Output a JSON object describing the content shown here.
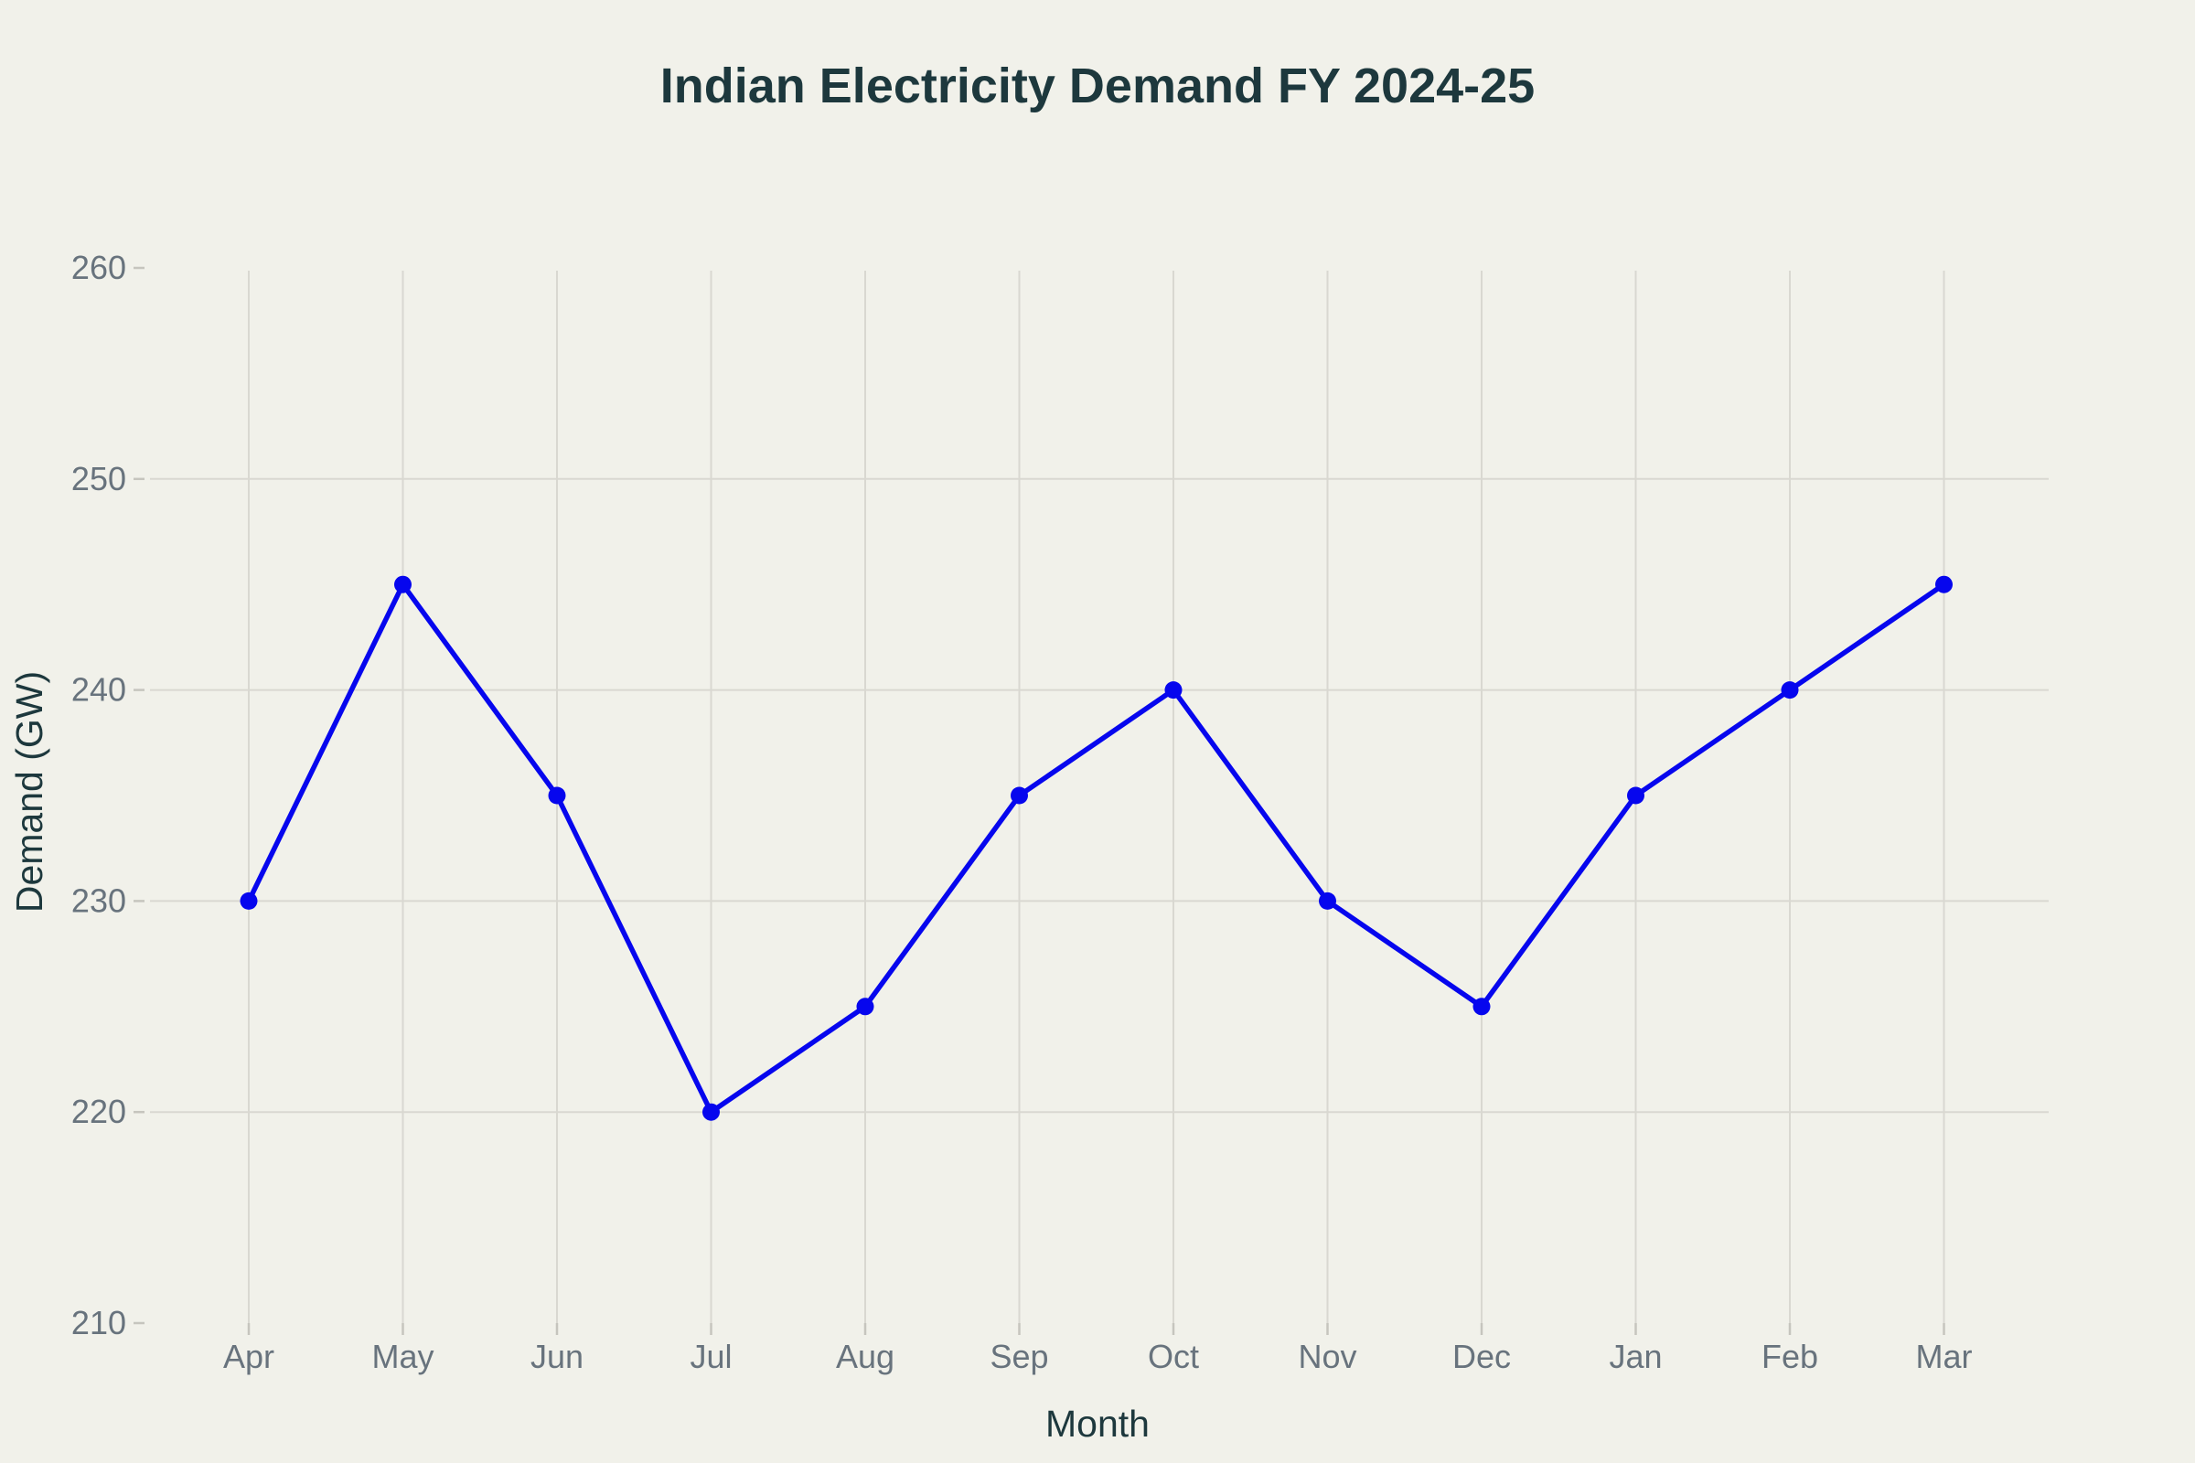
{
  "chart_data": {
    "type": "line",
    "title": "Indian Electricity Demand FY 2024-25",
    "xlabel": "Month",
    "ylabel": "Demand (GW)",
    "categories": [
      "Apr",
      "May",
      "Jun",
      "Jul",
      "Aug",
      "Sep",
      "Oct",
      "Nov",
      "Dec",
      "Jan",
      "Feb",
      "Mar"
    ],
    "values": [
      230,
      245,
      235,
      220,
      225,
      235,
      240,
      230,
      225,
      235,
      240,
      245
    ],
    "ylim": [
      210,
      260
    ],
    "y_ticks": [
      210,
      220,
      230,
      240,
      250,
      260
    ],
    "y_grid_ticks": [
      220,
      230,
      240,
      250
    ],
    "grid": "on",
    "legend": "none",
    "marker": "circle"
  },
  "colors": {
    "background": "#f1f1ea",
    "line": "#0606ee",
    "title_text": "#1d383d",
    "tick_text": "#68737d",
    "grid": "#d9d8d1",
    "tick_mark": "#c6c5be"
  }
}
